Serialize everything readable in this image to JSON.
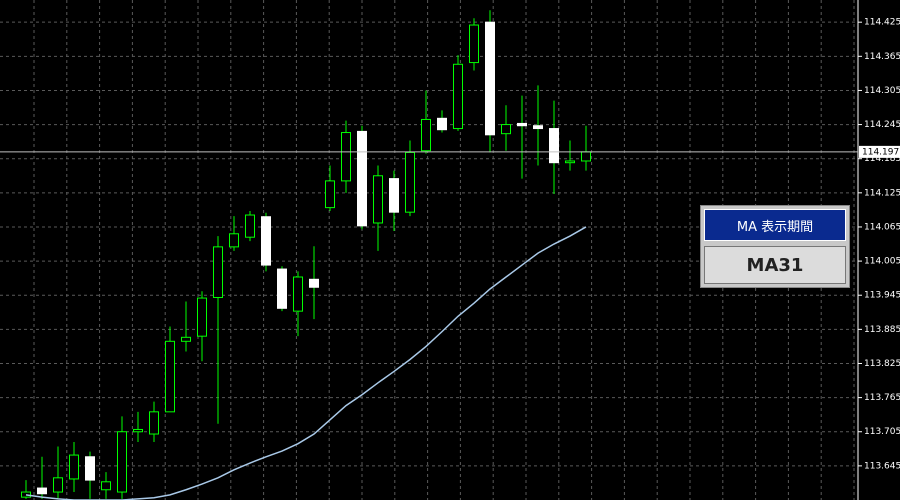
{
  "chart_data": {
    "type": "candlestick",
    "open": [
      113.59,
      113.606,
      113.599,
      113.622,
      113.661,
      113.603,
      113.599,
      113.705,
      113.701,
      113.74,
      113.864,
      113.873,
      113.941,
      114.03,
      114.047,
      114.083,
      113.991,
      113.917,
      113.973,
      114.099,
      114.146,
      114.233,
      114.072,
      114.15,
      114.091,
      114.199,
      114.256,
      114.238,
      114.354,
      114.425,
      114.229,
      114.247,
      114.243,
      114.238,
      114.178,
      114.181
    ],
    "high": [
      113.62,
      113.661,
      113.679,
      113.687,
      113.67,
      113.634,
      113.732,
      113.74,
      113.758,
      113.89,
      113.934,
      113.952,
      114.049,
      114.084,
      114.093,
      114.09,
      113.996,
      113.987,
      114.031,
      114.173,
      114.252,
      114.243,
      114.173,
      114.164,
      114.217,
      114.305,
      114.27,
      114.367,
      114.432,
      114.446,
      114.279,
      114.296,
      114.314,
      114.287,
      114.217,
      114.243
    ],
    "low": [
      113.587,
      113.587,
      113.587,
      113.599,
      113.587,
      113.587,
      113.587,
      113.687,
      113.687,
      113.74,
      113.846,
      113.829,
      113.719,
      114.023,
      114.04,
      113.987,
      113.917,
      113.873,
      113.903,
      114.093,
      114.125,
      114.061,
      114.023,
      114.058,
      114.084,
      114.194,
      114.231,
      114.234,
      114.34,
      114.196,
      114.199,
      114.15,
      114.173,
      114.123,
      114.164,
      114.164
    ],
    "close": [
      113.599,
      113.596,
      113.624,
      113.664,
      113.62,
      113.617,
      113.705,
      113.709,
      113.74,
      113.864,
      113.871,
      113.94,
      114.03,
      114.053,
      114.086,
      113.998,
      113.922,
      113.977,
      113.959,
      114.146,
      114.231,
      114.067,
      114.155,
      114.091,
      114.196,
      114.254,
      114.236,
      114.351,
      114.42,
      114.227,
      114.245,
      114.243,
      114.238,
      114.178,
      114.181,
      114.197
    ],
    "ma": [
      113.594,
      113.59,
      113.587,
      113.585,
      113.585,
      113.585,
      113.585,
      113.587,
      113.589,
      113.594,
      113.603,
      113.613,
      113.624,
      113.638,
      113.65,
      113.661,
      113.671,
      113.684,
      113.701,
      113.726,
      113.751,
      113.77,
      113.791,
      113.811,
      113.832,
      113.855,
      113.881,
      113.908,
      113.931,
      113.956,
      113.977,
      113.998,
      114.019,
      114.035,
      114.049,
      114.065
    ],
    "ylim": [
      113.585,
      114.464
    ],
    "yticks": [
      113.645,
      113.705,
      113.765,
      113.825,
      113.885,
      113.945,
      114.005,
      114.065,
      114.125,
      114.185,
      114.245,
      114.305,
      114.365,
      114.425
    ],
    "bid": 114.197,
    "grid": true,
    "up_color": "#000000",
    "down_color": "#ffffff",
    "wick_color": "#00ff00",
    "ma_color": "#a9c9e8"
  },
  "panel": {
    "title": "MA 表示期間",
    "button": "MA31"
  }
}
